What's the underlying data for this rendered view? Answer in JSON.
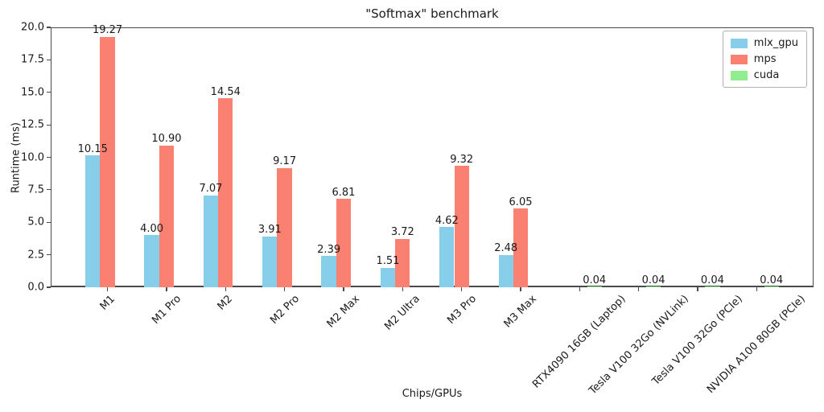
{
  "chart_data": {
    "type": "bar",
    "title": "\"Softmax\" benchmark",
    "xlabel": "Chips/GPUs",
    "ylabel": "Runtime (ms)",
    "ylim": [
      0,
      20
    ],
    "yticks": [
      0.0,
      2.5,
      5.0,
      7.5,
      10.0,
      12.5,
      15.0,
      17.5,
      20.0
    ],
    "grid": false,
    "legend_position": "upper right",
    "bar_value_labels": true,
    "value_label_decimals": 2,
    "categories": [
      "M1",
      "M1 Pro",
      "M2",
      "M2 Pro",
      "M2 Max",
      "M2 Ultra",
      "M3 Pro",
      "M3 Max",
      "RTX4090 16GB (Laptop)",
      "Tesla V100 32Go (NVLink)",
      "Tesla V100 32Go (PCIe)",
      "NVIDIA A100 80GB (PCIe)"
    ],
    "series": [
      {
        "name": "mlx_gpu",
        "color": "#87ceeb",
        "values": [
          10.15,
          4.0,
          7.07,
          3.91,
          2.39,
          1.51,
          4.62,
          2.48,
          null,
          null,
          null,
          null
        ]
      },
      {
        "name": "mps",
        "color": "#fa8072",
        "values": [
          19.27,
          10.9,
          14.54,
          9.17,
          6.81,
          3.72,
          9.32,
          6.05,
          null,
          null,
          null,
          null
        ]
      },
      {
        "name": "cuda",
        "color": "#90ee90",
        "values": [
          null,
          null,
          null,
          null,
          null,
          null,
          null,
          null,
          0.04,
          0.04,
          0.04,
          0.04
        ]
      }
    ]
  },
  "colors": {
    "axis": "#4a4a4a",
    "text": "#1a1a1a",
    "background": "#ffffff",
    "legend_border": "#b0b0b0"
  }
}
